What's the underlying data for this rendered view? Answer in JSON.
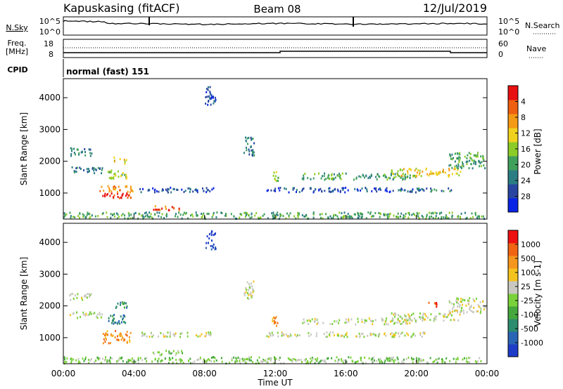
{
  "header": {
    "station": "Kapuskasing (fitACF)",
    "beam": "Beam 08",
    "date": "12/Jul/2019"
  },
  "noise_panel": {
    "left_label": "N.Sky",
    "right_label": "N.Search",
    "left_ticks": [
      "10^5",
      "10^0"
    ],
    "right_ticks": [
      "10^5",
      "10^0"
    ]
  },
  "freq_panel": {
    "left_label_line1": "Freq.",
    "left_label_line2": "[MHz]",
    "right_label": "Nave",
    "left_ticks": [
      "18",
      "8"
    ],
    "right_ticks": [
      "60",
      "0"
    ]
  },
  "cpid": {
    "label": "CPID",
    "value": "normal (fast) 151"
  },
  "x_axis": {
    "label": "Time UT",
    "ticks": [
      "00:00",
      "04:00",
      "08:00",
      "12:00",
      "16:00",
      "20:00",
      "00:00"
    ]
  },
  "chart_data": [
    {
      "type": "heatmap",
      "quantity": "power",
      "xlabel": "Time UT",
      "ylabel": "Slant Range [km]",
      "xlim_hours": [
        0,
        24
      ],
      "ylim_km": [
        180,
        4600
      ],
      "yticks": [
        1000,
        2000,
        3000,
        4000
      ],
      "colorbar": {
        "label": "Power [dB]",
        "ticks": [
          "4",
          "8",
          "12",
          "16",
          "20",
          "24",
          "28"
        ],
        "colors": [
          "#0a24e6",
          "#2846a0",
          "#2b7d84",
          "#3fa05a",
          "#8ccc28",
          "#f0d21e",
          "#f59a14",
          "#ee6010",
          "#e81010"
        ]
      },
      "regions": [
        {
          "t": [
            0.0,
            23.8
          ],
          "r": [
            220,
            420
          ],
          "level": 3
        },
        {
          "t": [
            2.2,
            3.8
          ],
          "r": [
            850,
            1050
          ],
          "level": 8
        },
        {
          "t": [
            2.0,
            4.0
          ],
          "r": [
            1050,
            1250
          ],
          "level": 6
        },
        {
          "t": [
            2.5,
            3.6
          ],
          "r": [
            1450,
            1750
          ],
          "level": 4
        },
        {
          "t": [
            2.8,
            3.6
          ],
          "r": [
            1950,
            2150
          ],
          "level": 5
        },
        {
          "t": [
            5.0,
            6.8
          ],
          "r": [
            480,
            620
          ],
          "level": 7
        },
        {
          "t": [
            0.3,
            2.2
          ],
          "r": [
            1650,
            1850
          ],
          "level": 2
        },
        {
          "t": [
            0.3,
            1.6
          ],
          "r": [
            2200,
            2450
          ],
          "level": 2
        },
        {
          "t": [
            4.3,
            8.5
          ],
          "r": [
            1050,
            1200
          ],
          "level": 1
        },
        {
          "t": [
            10.2,
            10.8
          ],
          "r": [
            2200,
            2800
          ],
          "level": 2
        },
        {
          "t": [
            11.5,
            20.5
          ],
          "r": [
            1050,
            1200
          ],
          "level": 1
        },
        {
          "t": [
            13.5,
            20.0
          ],
          "r": [
            1450,
            1650
          ],
          "level": 3
        },
        {
          "t": [
            18.5,
            22.5
          ],
          "r": [
            1550,
            1800
          ],
          "level": 5
        },
        {
          "t": [
            21.8,
            23.9
          ],
          "r": [
            1800,
            2300
          ],
          "level": 3
        },
        {
          "t": [
            11.8,
            12.2
          ],
          "r": [
            1400,
            1700
          ],
          "level": 4
        },
        {
          "t": [
            8.0,
            8.6
          ],
          "r": [
            3800,
            4400
          ],
          "level": 1
        },
        {
          "t": [
            19.0,
            22.0
          ],
          "r": [
            1080,
            1180
          ],
          "level": 2
        }
      ]
    },
    {
      "type": "heatmap",
      "quantity": "velocity",
      "xlabel": "Time UT",
      "ylabel": "Slant Range [km]",
      "xlim_hours": [
        0,
        24
      ],
      "ylim_km": [
        180,
        4600
      ],
      "yticks": [
        1000,
        2000,
        3000,
        4000
      ],
      "colorbar": {
        "label": "Velocity [m s-1]",
        "ticks": [
          "1000",
          "500",
          "100",
          "25",
          "-25",
          "-100",
          "-500",
          "-1000"
        ],
        "colors": [
          "#1e3cc8",
          "#2a64b4",
          "#2c8c6e",
          "#44a83c",
          "#7ad23a",
          "#c8c8c0",
          "#f5c31e",
          "#f5961e",
          "#f06414",
          "#ee1010"
        ]
      },
      "regions": [
        {
          "t": [
            0.0,
            23.8
          ],
          "r": [
            220,
            420
          ],
          "level": 4
        },
        {
          "t": [
            2.2,
            3.8
          ],
          "r": [
            850,
            1250
          ],
          "level": 7
        },
        {
          "t": [
            2.5,
            3.6
          ],
          "r": [
            1450,
            1750
          ],
          "level": 2
        },
        {
          "t": [
            2.8,
            3.6
          ],
          "r": [
            1950,
            2150
          ],
          "level": 2
        },
        {
          "t": [
            5.0,
            6.8
          ],
          "r": [
            480,
            620
          ],
          "level": 4
        },
        {
          "t": [
            0.3,
            2.2
          ],
          "r": [
            1650,
            1850
          ],
          "level": 5
        },
        {
          "t": [
            0.3,
            1.6
          ],
          "r": [
            2200,
            2450
          ],
          "level": 5
        },
        {
          "t": [
            4.3,
            8.5
          ],
          "r": [
            1050,
            1200
          ],
          "level": 5
        },
        {
          "t": [
            10.2,
            10.8
          ],
          "r": [
            2200,
            2800
          ],
          "level": 5
        },
        {
          "t": [
            11.5,
            20.5
          ],
          "r": [
            1050,
            1200
          ],
          "level": 5
        },
        {
          "t": [
            13.5,
            20.0
          ],
          "r": [
            1450,
            1650
          ],
          "level": 5
        },
        {
          "t": [
            18.5,
            22.5
          ],
          "r": [
            1550,
            1800
          ],
          "level": 5
        },
        {
          "t": [
            21.8,
            23.9
          ],
          "r": [
            1800,
            2300
          ],
          "level": 5
        },
        {
          "t": [
            11.8,
            12.2
          ],
          "r": [
            1400,
            1700
          ],
          "level": 7
        },
        {
          "t": [
            8.0,
            8.6
          ],
          "r": [
            3800,
            4400
          ],
          "level": 0
        },
        {
          "t": [
            20.6,
            21.2
          ],
          "r": [
            2000,
            2150
          ],
          "level": 8
        }
      ]
    }
  ]
}
